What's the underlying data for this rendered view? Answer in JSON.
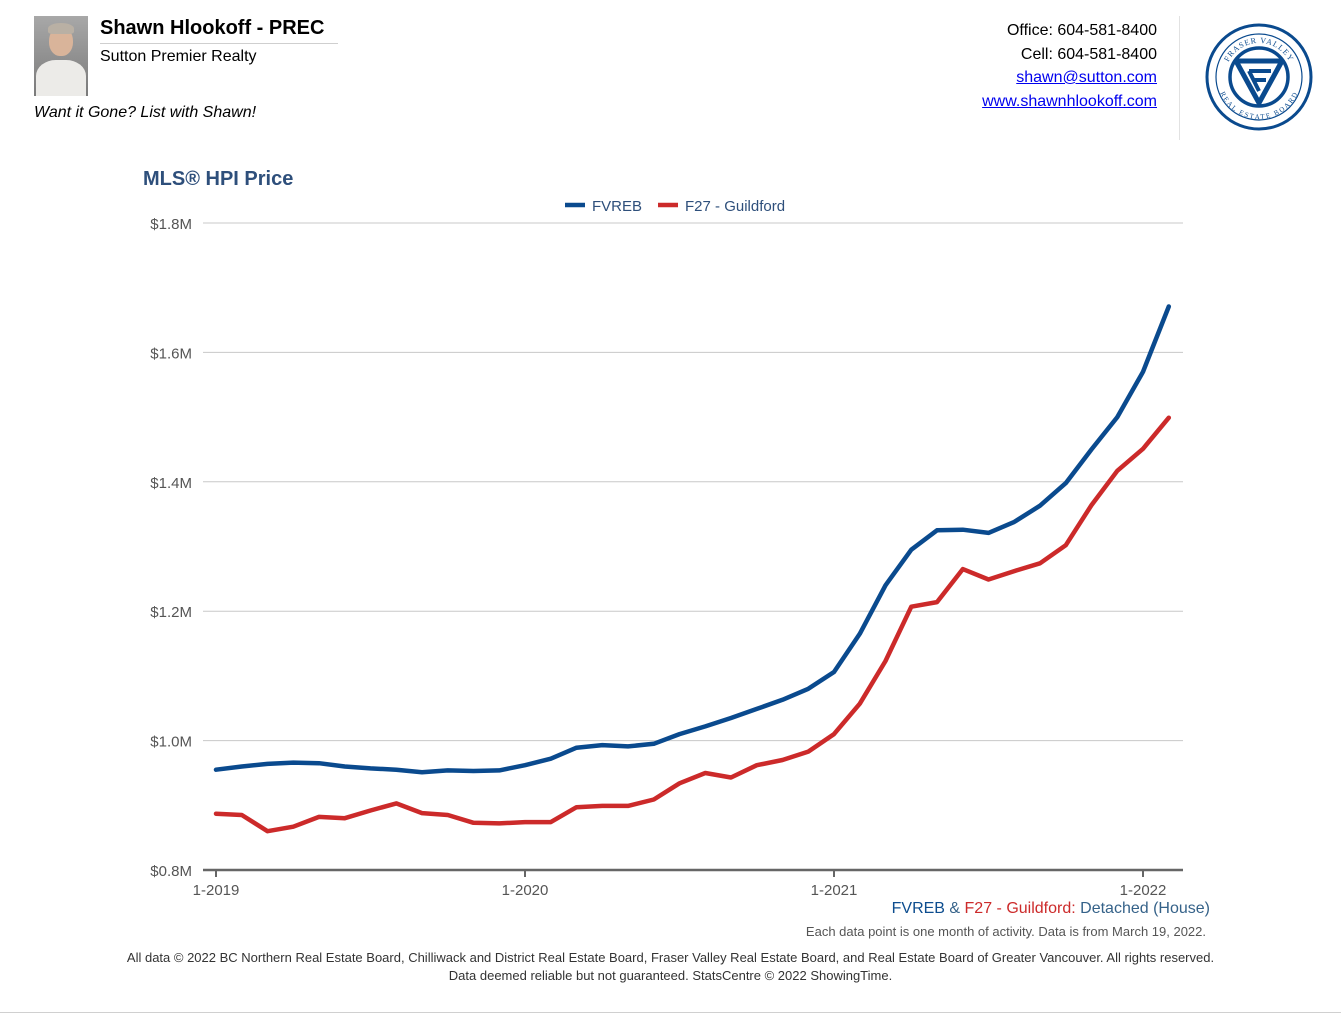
{
  "header": {
    "agent_name": "Shawn Hlookoff - PREC",
    "company": "Sutton Premier Realty",
    "tagline": "Want it Gone? List with Shawn!",
    "office": "Office: 604-581-8400",
    "cell": "Cell: 604-581-8400",
    "email": "shawn@sutton.com",
    "website": "www.shawnhlookoff.com",
    "logo_top_text": "FRASER VALLEY",
    "logo_bottom_text": "REAL ESTATE BOARD",
    "logo_color": "#0a4a8e"
  },
  "chart_data": {
    "type": "line",
    "title": "MLS® HPI Price",
    "ylim": [
      800000,
      1800000
    ],
    "y_ticks": [
      800000,
      1000000,
      1200000,
      1400000,
      1600000,
      1800000
    ],
    "y_tick_labels": [
      "$0.8M",
      "$1.0M",
      "$1.2M",
      "$1.4M",
      "$1.6M",
      "$1.8M"
    ],
    "x_tick_labels": [
      "1-2019",
      "1-2020",
      "1-2021",
      "1-2022"
    ],
    "x_tick_index": [
      0,
      12,
      24,
      36
    ],
    "legend_position": "top-center",
    "grid": true,
    "series": [
      {
        "name": "FVREB",
        "color": "#0a4a8e",
        "values": [
          955000,
          960000,
          964000,
          966000,
          965000,
          960000,
          957000,
          955000,
          951000,
          954000,
          953000,
          954000,
          962000,
          972000,
          989000,
          993000,
          991000,
          995000,
          1010000,
          1022000,
          1035000,
          1049000,
          1063000,
          1080000,
          1106000,
          1165000,
          1240000,
          1295000,
          1325000,
          1326000,
          1321000,
          1338000,
          1363000,
          1398000,
          1450000,
          1500000,
          1570000,
          1671000
        ]
      },
      {
        "name": "F27 - Guildford",
        "color": "#cc2a2a",
        "values": [
          887000,
          885000,
          860000,
          867000,
          882000,
          880000,
          892000,
          903000,
          888000,
          885000,
          873000,
          872000,
          874000,
          874000,
          897000,
          899000,
          899000,
          909000,
          934000,
          950000,
          943000,
          962000,
          970000,
          983000,
          1010000,
          1057000,
          1123000,
          1207000,
          1214000,
          1265000,
          1249000,
          1262000,
          1274000,
          1302000,
          1364000,
          1417000,
          1451000,
          1499000
        ]
      }
    ]
  },
  "caption": {
    "series1": "FVREB",
    "amp": " & ",
    "series2": "F27 - Guildford",
    "colon": ":",
    "type": " Detached (House)"
  },
  "note": "Each data point is one month of activity. Data is from March 19, 2022.",
  "footer": {
    "line1": "All data © 2022 BC Northern Real Estate Board, Chilliwack and District Real Estate Board, Fraser Valley Real Estate Board, and Real Estate Board of Greater Vancouver. All rights reserved.",
    "line2": "Data deemed reliable but not guaranteed. StatsCentre © 2022 ShowingTime."
  }
}
